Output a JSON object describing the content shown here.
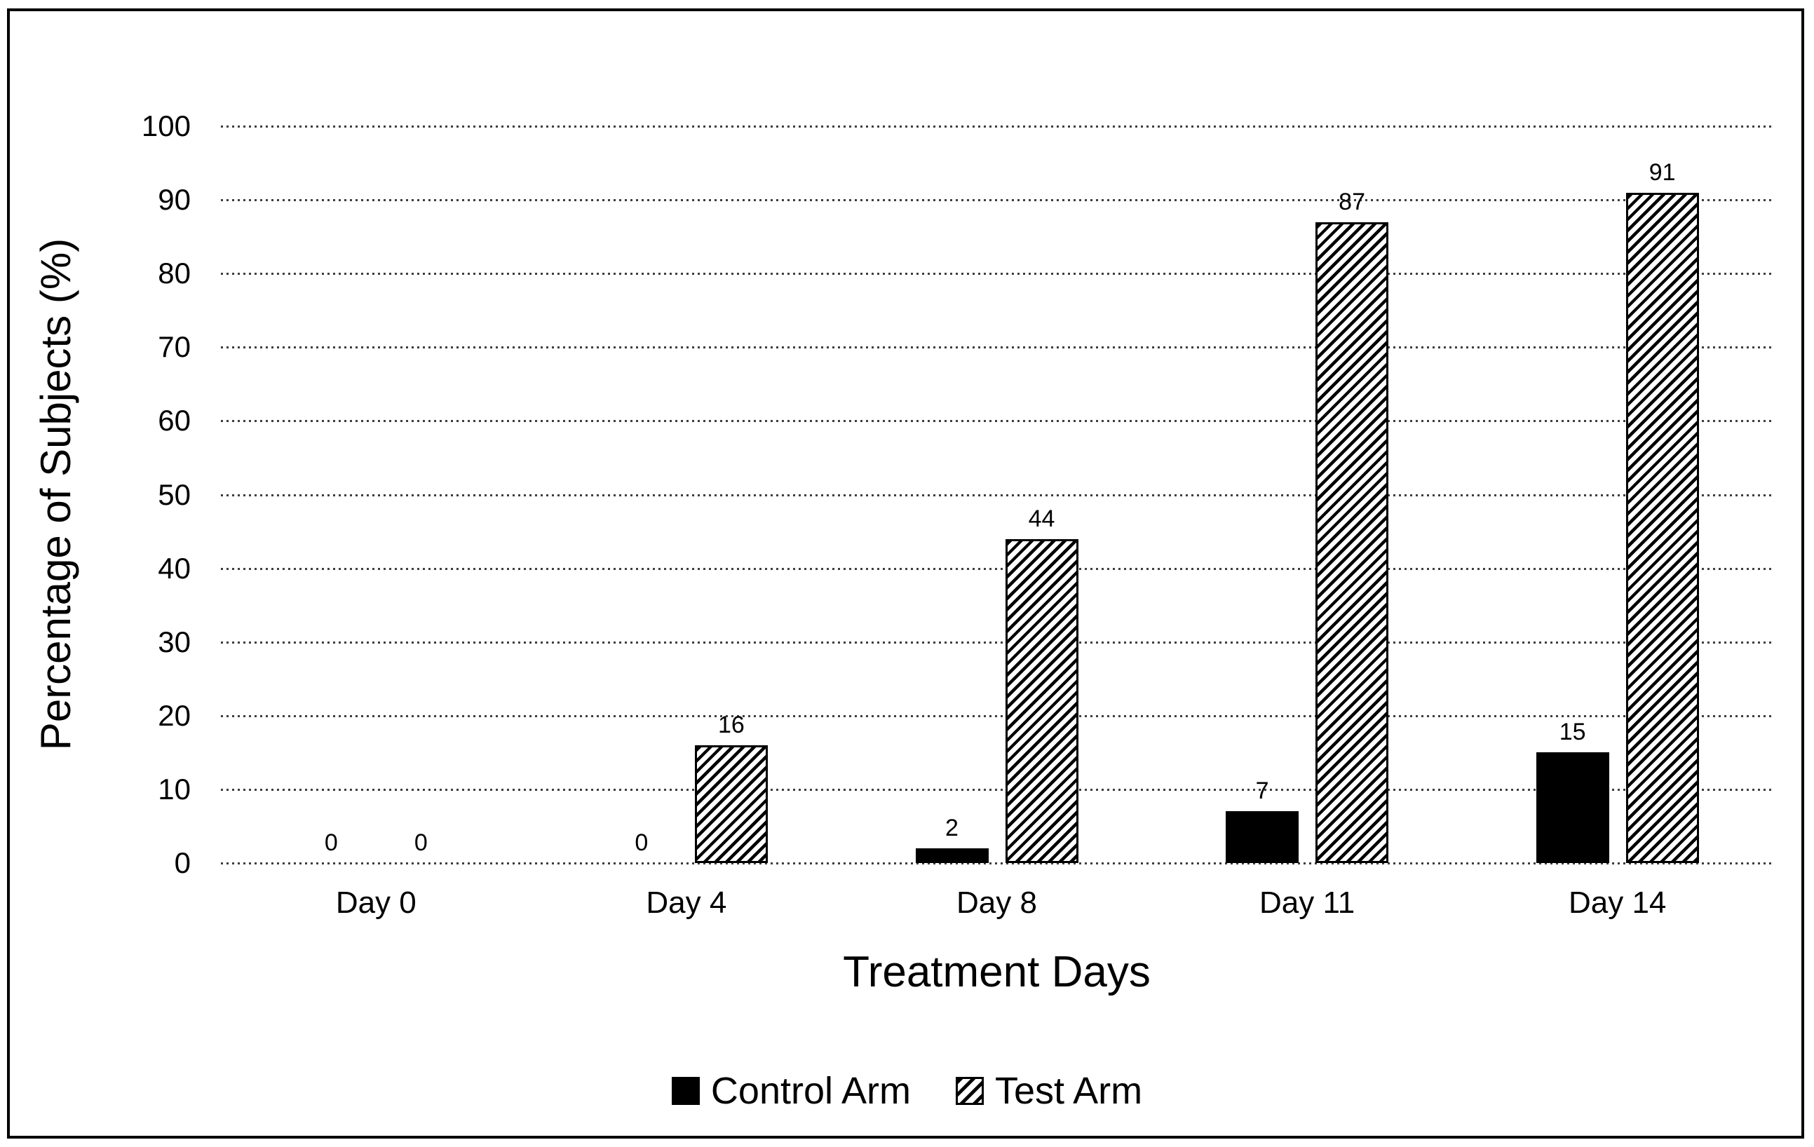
{
  "chart_data": {
    "type": "bar",
    "title": "",
    "categories": [
      "Day 0",
      "Day 4",
      "Day 8",
      "Day 11",
      "Day 14"
    ],
    "series": [
      {
        "name": "Control Arm",
        "style": "solid-black",
        "values": [
          0,
          0,
          2,
          7,
          15
        ]
      },
      {
        "name": "Test Arm",
        "style": "diagonal-hatch",
        "values": [
          0,
          16,
          44,
          87,
          91
        ]
      }
    ],
    "xlabel": "Treatment Days",
    "ylabel": "Percentage of Subjects (%)",
    "ylim": [
      0,
      100
    ],
    "yticks": [
      0,
      10,
      20,
      30,
      40,
      50,
      60,
      70,
      80,
      90,
      100
    ],
    "grid": "horizontal-dotted",
    "legend_position": "bottom",
    "bar_value_labels": true
  },
  "colors": {
    "background": "#ffffff",
    "frame_border": "#000000",
    "bar_fill": "#000000",
    "gridline": "#3d3d3d",
    "text": "#000000"
  }
}
